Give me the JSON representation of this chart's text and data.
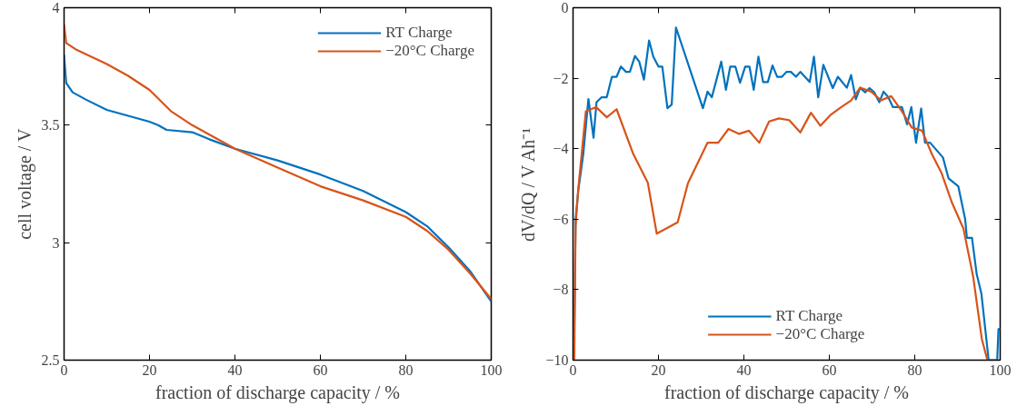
{
  "chart_data": [
    {
      "type": "line",
      "xlabel": "fraction of discharge capacity / %",
      "ylabel": "cell voltage / V",
      "xlim": [
        0,
        100
      ],
      "xticks": [
        0,
        20,
        40,
        60,
        80,
        100
      ],
      "ylim": [
        2.5,
        4
      ],
      "yticks": [
        2.5,
        3,
        3.5,
        4
      ],
      "grid": false,
      "legend": "top right",
      "line_style": "solid",
      "marker": "none",
      "series": [
        {
          "name": "RT Charge",
          "color": "#0072bd",
          "x": [
            0,
            0.5,
            2,
            5,
            10,
            15,
            20,
            22,
            24,
            30,
            34,
            40,
            50,
            60,
            70,
            80,
            85,
            90,
            95,
            100
          ],
          "values": [
            3.8,
            3.68,
            3.64,
            3.61,
            3.565,
            3.54,
            3.515,
            3.5,
            3.48,
            3.47,
            3.44,
            3.4,
            3.35,
            3.29,
            3.22,
            3.13,
            3.07,
            2.98,
            2.88,
            2.75
          ]
        },
        {
          "name": "−20°C Charge",
          "color": "#d95319",
          "x": [
            0,
            0.5,
            3,
            10,
            15,
            20,
            25,
            30,
            35,
            40,
            50,
            60,
            70,
            80,
            85,
            90,
            95,
            100
          ],
          "values": [
            3.93,
            3.85,
            3.82,
            3.76,
            3.71,
            3.65,
            3.56,
            3.5,
            3.45,
            3.4,
            3.32,
            3.24,
            3.18,
            3.11,
            3.05,
            2.97,
            2.87,
            2.76
          ]
        }
      ]
    },
    {
      "type": "line",
      "xlabel": "fraction of discharge capacity / %",
      "ylabel": "dV/dQ / V Ah⁻¹",
      "xlim": [
        0,
        100
      ],
      "xticks": [
        0,
        20,
        40,
        60,
        80,
        100
      ],
      "ylim": [
        -10,
        0
      ],
      "yticks": [
        -10,
        -8,
        -6,
        -4,
        -2,
        0
      ],
      "grid": false,
      "legend": "bottom",
      "line_style": "solid",
      "marker": "none",
      "series": [
        {
          "name": "RT Charge",
          "color": "#0072bd",
          "x": [
            0.2,
            0.6,
            1.25,
            2.4,
            3.6,
            4.8,
            5.5,
            6.7,
            7.9,
            9.1,
            10.2,
            11.2,
            12.4,
            13.3,
            14.5,
            15.5,
            16.6,
            17.8,
            18.8,
            20.0,
            20.9,
            22.1,
            23.1,
            24.1,
            30.4,
            31.5,
            32.5,
            34.7,
            35.8,
            36.8,
            38.0,
            39.1,
            40.3,
            41.3,
            42.3,
            43.4,
            44.5,
            45.6,
            46.7,
            47.8,
            48.9,
            50.0,
            51.0,
            52.2,
            53.2,
            55.4,
            56.4,
            57.4,
            58.6,
            60.8,
            62.0,
            64.1,
            65.1,
            66.2,
            67.2,
            68.4,
            69.4,
            70.5,
            71.7,
            72.7,
            73.8,
            74.9,
            77.0,
            78.2,
            79.2,
            80.3,
            81.5,
            82.4,
            83.6,
            86.6,
            87.9,
            90.2,
            91.8,
            92.2,
            93.4,
            94.5,
            95.6,
            97.3,
            99.3,
            99.6,
            100
          ],
          "values": [
            -10,
            -6.0,
            -5.17,
            -4.15,
            -2.59,
            -3.69,
            -2.68,
            -2.54,
            -2.54,
            -1.96,
            -1.96,
            -1.67,
            -1.82,
            -1.82,
            -1.37,
            -1.53,
            -2.04,
            -0.93,
            -1.39,
            -1.67,
            -1.67,
            -2.85,
            -2.75,
            -0.56,
            -2.85,
            -2.38,
            -2.54,
            -1.53,
            -2.33,
            -1.67,
            -1.67,
            -2.13,
            -1.67,
            -1.67,
            -2.33,
            -1.39,
            -2.11,
            -2.11,
            -1.64,
            -1.96,
            -1.96,
            -1.82,
            -1.82,
            -1.96,
            -1.82,
            -2.11,
            -1.39,
            -2.54,
            -1.62,
            -2.28,
            -1.96,
            -2.27,
            -1.91,
            -2.6,
            -2.27,
            -2.4,
            -2.28,
            -2.4,
            -2.68,
            -2.38,
            -2.54,
            -2.82,
            -2.82,
            -3.31,
            -2.82,
            -3.83,
            -2.86,
            -3.83,
            -3.83,
            -4.25,
            -4.84,
            -5.07,
            -6.0,
            -6.53,
            -6.53,
            -7.56,
            -8.11,
            -10,
            -10,
            -9.12,
            -9.12
          ]
        },
        {
          "name": "−20°C Charge",
          "color": "#d95319",
          "x": [
            0.3,
            0.6,
            1.2,
            3.0,
            5.4,
            7.9,
            10.2,
            14.1,
            17.5,
            19.6,
            24.5,
            26.9,
            31.5,
            34.0,
            36.4,
            38.9,
            41.2,
            43.6,
            45.9,
            48.2,
            50.6,
            53.2,
            55.7,
            57.9,
            60.4,
            62.8,
            65.1,
            67.2,
            69.8,
            72.1,
            74.5,
            77.0,
            79.3,
            81.7,
            84.0,
            86.3,
            88.7,
            91.4,
            93.7,
            95.7,
            97.0
          ],
          "values": [
            -10,
            -6.2,
            -5.17,
            -2.94,
            -2.82,
            -3.11,
            -2.88,
            -4.15,
            -4.96,
            -6.41,
            -6.09,
            -4.98,
            -3.83,
            -3.83,
            -3.44,
            -3.58,
            -3.49,
            -3.83,
            -3.23,
            -3.14,
            -3.19,
            -3.54,
            -2.98,
            -3.35,
            -3.03,
            -2.82,
            -2.63,
            -2.27,
            -2.38,
            -2.63,
            -2.51,
            -2.94,
            -3.4,
            -3.49,
            -4.15,
            -4.7,
            -5.53,
            -6.27,
            -7.65,
            -9.4,
            -10
          ]
        }
      ]
    }
  ]
}
